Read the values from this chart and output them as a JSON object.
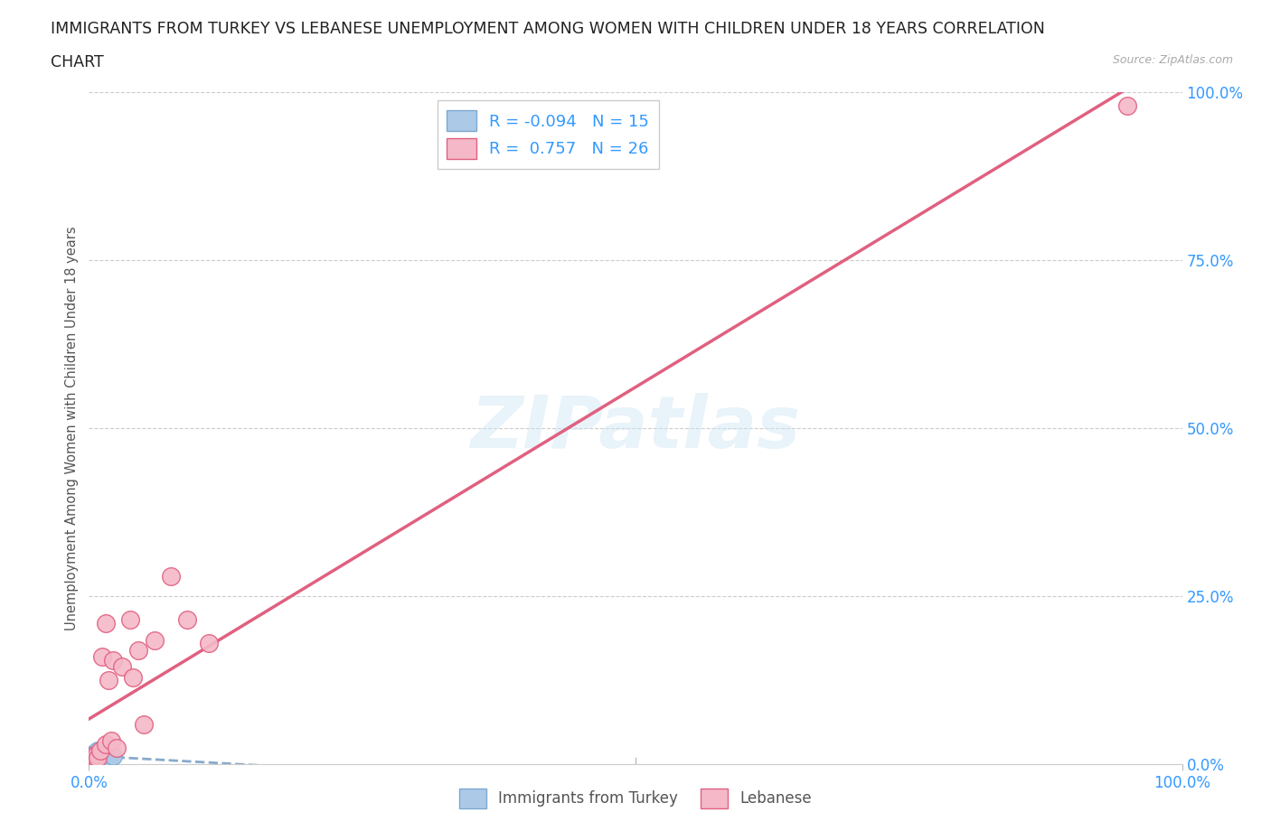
{
  "title_line1": "IMMIGRANTS FROM TURKEY VS LEBANESE UNEMPLOYMENT AMONG WOMEN WITH CHILDREN UNDER 18 YEARS CORRELATION",
  "title_line2": "CHART",
  "source": "Source: ZipAtlas.com",
  "ylabel": "Unemployment Among Women with Children Under 18 years",
  "ytick_labels": [
    "0.0%",
    "25.0%",
    "50.0%",
    "75.0%",
    "100.0%"
  ],
  "ytick_values": [
    0.0,
    0.25,
    0.5,
    0.75,
    1.0
  ],
  "xtick_labels": [
    "0.0%",
    "100.0%"
  ],
  "xtick_values": [
    0.0,
    1.0
  ],
  "xlim": [
    0.0,
    1.0
  ],
  "ylim": [
    0.0,
    1.0
  ],
  "watermark_text": "ZIPatlas",
  "legend_bottom": [
    "Immigrants from Turkey",
    "Lebanese"
  ],
  "turkey_color": "#adc9e8",
  "turkey_edge_color": "#7baad0",
  "lebanon_color": "#f5b8c8",
  "lebanon_edge_color": "#e06080",
  "turkey_line_color": "#88aacc",
  "lebanon_line_color": "#e06080",
  "turkey_R": -0.094,
  "turkey_N": 15,
  "lebanon_R": 0.757,
  "lebanon_N": 26,
  "turkey_points_x": [
    0.001,
    0.002,
    0.003,
    0.004,
    0.005,
    0.006,
    0.007,
    0.008,
    0.009,
    0.01,
    0.012,
    0.014,
    0.016,
    0.018,
    0.022
  ],
  "turkey_points_y": [
    0.01,
    0.012,
    0.008,
    0.015,
    0.01,
    0.018,
    0.012,
    0.02,
    0.015,
    0.008,
    0.01,
    0.012,
    0.008,
    0.01,
    0.012
  ],
  "lebanon_points_x": [
    0.001,
    0.002,
    0.003,
    0.004,
    0.005,
    0.006,
    0.007,
    0.008,
    0.01,
    0.012,
    0.015,
    0.018,
    0.022,
    0.03,
    0.038,
    0.045,
    0.06,
    0.075,
    0.09,
    0.11,
    0.015,
    0.02,
    0.025,
    0.04,
    0.05,
    0.95
  ],
  "lebanon_points_y": [
    0.005,
    0.008,
    0.01,
    0.012,
    0.008,
    0.01,
    0.015,
    0.01,
    0.02,
    0.16,
    0.21,
    0.125,
    0.155,
    0.145,
    0.215,
    0.17,
    0.185,
    0.28,
    0.215,
    0.18,
    0.03,
    0.035,
    0.025,
    0.13,
    0.06,
    0.98
  ],
  "title_color": "#222222",
  "title_fontsize": 12.5,
  "source_color": "#aaaaaa",
  "axis_label_color": "#555555",
  "ytick_color": "#3399ff",
  "xtick_color": "#3399ff",
  "grid_color": "#cccccc",
  "background_color": "#ffffff",
  "legend_label_color_blue": "#3399ff",
  "legend_label_color_black": "#333333"
}
